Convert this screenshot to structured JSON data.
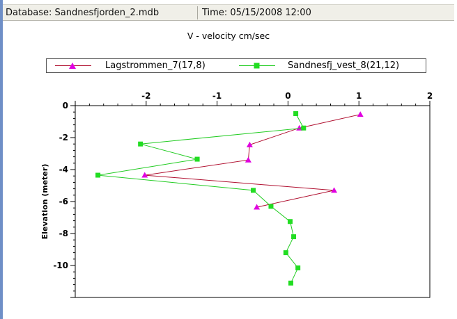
{
  "statusbar": {
    "database": "Database: Sandnesfjorden_2.mdb",
    "time": "Time: 05/15/2008 12:00"
  },
  "colors": {
    "series1": "#b01030",
    "series1_marker": "#e000e0",
    "series2": "#22cc22",
    "series2_marker": "#22dd22",
    "window_edge": "#6f8fc7"
  },
  "chart_data": {
    "type": "line",
    "title": "V - velocity cm/sec",
    "xlabel": "",
    "ylabel": "Elevation (meter)",
    "xlim": [
      -3,
      2
    ],
    "ylim": [
      -12,
      0
    ],
    "x_axis_position": "top",
    "x_ticks": [
      -2,
      -1,
      0,
      1,
      2
    ],
    "y_ticks": [
      0,
      -2,
      -4,
      -6,
      -8,
      -10
    ],
    "grid": false,
    "legend_position": "top",
    "series": [
      {
        "name": "Lagstrommen_7(17,8)",
        "marker": "triangle",
        "points": [
          {
            "x": 1.02,
            "y": -0.55
          },
          {
            "x": 0.16,
            "y": -1.4
          },
          {
            "x": -0.54,
            "y": -2.45
          },
          {
            "x": -0.56,
            "y": -3.4
          },
          {
            "x": -2.02,
            "y": -4.35
          },
          {
            "x": 0.65,
            "y": -5.3
          },
          {
            "x": -0.44,
            "y": -6.35
          }
        ]
      },
      {
        "name": "Sandnesfj_vest_8(21,12)",
        "marker": "square",
        "points": [
          {
            "x": 0.11,
            "y": -0.5
          },
          {
            "x": 0.22,
            "y": -1.4
          },
          {
            "x": -2.08,
            "y": -2.4
          },
          {
            "x": -1.28,
            "y": -3.35
          },
          {
            "x": -2.68,
            "y": -4.35
          },
          {
            "x": -0.49,
            "y": -5.3
          },
          {
            "x": -0.24,
            "y": -6.3
          },
          {
            "x": 0.03,
            "y": -7.25
          },
          {
            "x": 0.08,
            "y": -8.2
          },
          {
            "x": -0.03,
            "y": -9.2
          },
          {
            "x": 0.14,
            "y": -10.15
          },
          {
            "x": 0.04,
            "y": -11.1
          }
        ]
      }
    ]
  }
}
